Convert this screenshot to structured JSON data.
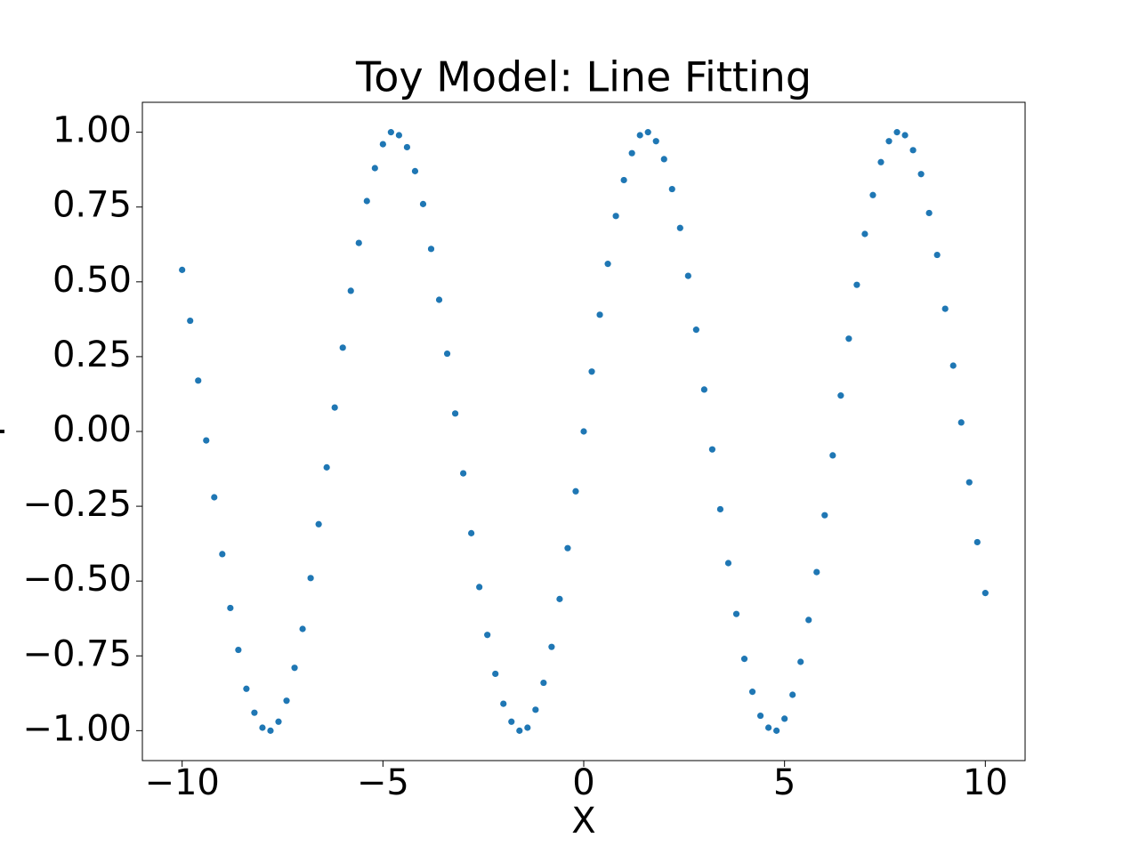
{
  "chart_data": {
    "type": "scatter",
    "title": "Toy Model: Line Fitting",
    "x_label": "X",
    "y_label": "Y",
    "x": [
      -10,
      -9.8,
      -9.6,
      -9.4,
      -9.2,
      -9,
      -8.8,
      -8.6,
      -8.4,
      -8.2,
      -8,
      -7.8,
      -7.6,
      -7.4,
      -7.2,
      -7,
      -6.8,
      -6.6,
      -6.4,
      -6.2,
      -6,
      -5.8,
      -5.6,
      -5.4,
      -5.2,
      -5,
      -4.8,
      -4.6,
      -4.4,
      -4.2,
      -4,
      -3.8,
      -3.6,
      -3.4,
      -3.2,
      -3,
      -2.8,
      -2.6,
      -2.4,
      -2.2,
      -2,
      -1.8,
      -1.6,
      -1.4,
      -1.2,
      -1,
      -0.8,
      -0.6,
      -0.4,
      -0.2,
      0,
      0.2,
      0.4,
      0.6,
      0.8,
      1,
      1.2,
      1.4,
      1.6,
      1.8,
      2,
      2.2,
      2.4,
      2.6,
      2.8,
      3,
      3.2,
      3.4,
      3.6,
      3.8,
      4,
      4.2,
      4.4,
      4.6,
      4.8,
      5,
      5.2,
      5.4,
      5.6,
      5.8,
      6,
      6.2,
      6.4,
      6.6,
      6.8,
      7,
      7.2,
      7.4,
      7.6,
      7.8,
      8,
      8.2,
      8.4,
      8.6,
      8.8,
      9,
      9.2,
      9.4,
      9.6,
      9.8,
      10
    ],
    "series": [
      {
        "color": "#1f77b4",
        "values": [
          0.54,
          0.37,
          0.17,
          -0.03,
          -0.22,
          -0.41,
          -0.59,
          -0.73,
          -0.86,
          -0.94,
          -0.99,
          -1.0,
          -0.97,
          -0.9,
          -0.79,
          -0.66,
          -0.49,
          -0.31,
          -0.12,
          0.08,
          0.28,
          0.47,
          0.63,
          0.77,
          0.88,
          0.96,
          1.0,
          0.99,
          0.95,
          0.87,
          0.76,
          0.61,
          0.44,
          0.26,
          0.06,
          -0.14,
          -0.34,
          -0.52,
          -0.68,
          -0.81,
          -0.91,
          -0.97,
          -1.0,
          -0.99,
          -0.93,
          -0.84,
          -0.72,
          -0.56,
          -0.39,
          -0.2,
          0,
          0.2,
          0.39,
          0.56,
          0.72,
          0.84,
          0.93,
          0.99,
          1.0,
          0.97,
          0.91,
          0.81,
          0.68,
          0.52,
          0.34,
          0.14,
          -0.06,
          -0.26,
          -0.44,
          -0.61,
          -0.76,
          -0.87,
          -0.95,
          -0.99,
          -1.0,
          -0.96,
          -0.88,
          -0.77,
          -0.63,
          -0.47,
          -0.28,
          -0.08,
          0.12,
          0.31,
          0.49,
          0.66,
          0.79,
          0.9,
          0.97,
          1.0,
          0.99,
          0.94,
          0.86,
          0.73,
          0.59,
          0.41,
          0.22,
          0.03,
          -0.17,
          -0.37,
          -0.54
        ]
      }
    ],
    "xlim": [
      -10.99,
      10.99
    ],
    "ylim": [
      -1.1,
      1.1
    ],
    "xticks": [
      {
        "value": -10,
        "label": "−10"
      },
      {
        "value": -5,
        "label": "−5"
      },
      0,
      5,
      10
    ],
    "yticks": [
      {
        "value": -1,
        "label": "−1.00"
      },
      {
        "value": -0.75,
        "label": "−0.75"
      },
      {
        "value": -0.5,
        "label": "−0.50"
      },
      {
        "value": -0.25,
        "label": "−0.25"
      },
      {
        "value": 0,
        "label": "0.00"
      },
      {
        "value": 0.25,
        "label": "0.25"
      },
      {
        "value": 0.5,
        "label": "0.50"
      },
      {
        "value": 0.75,
        "label": "0.75"
      },
      {
        "value": 1,
        "label": "1.00"
      }
    ],
    "grid": false
  }
}
